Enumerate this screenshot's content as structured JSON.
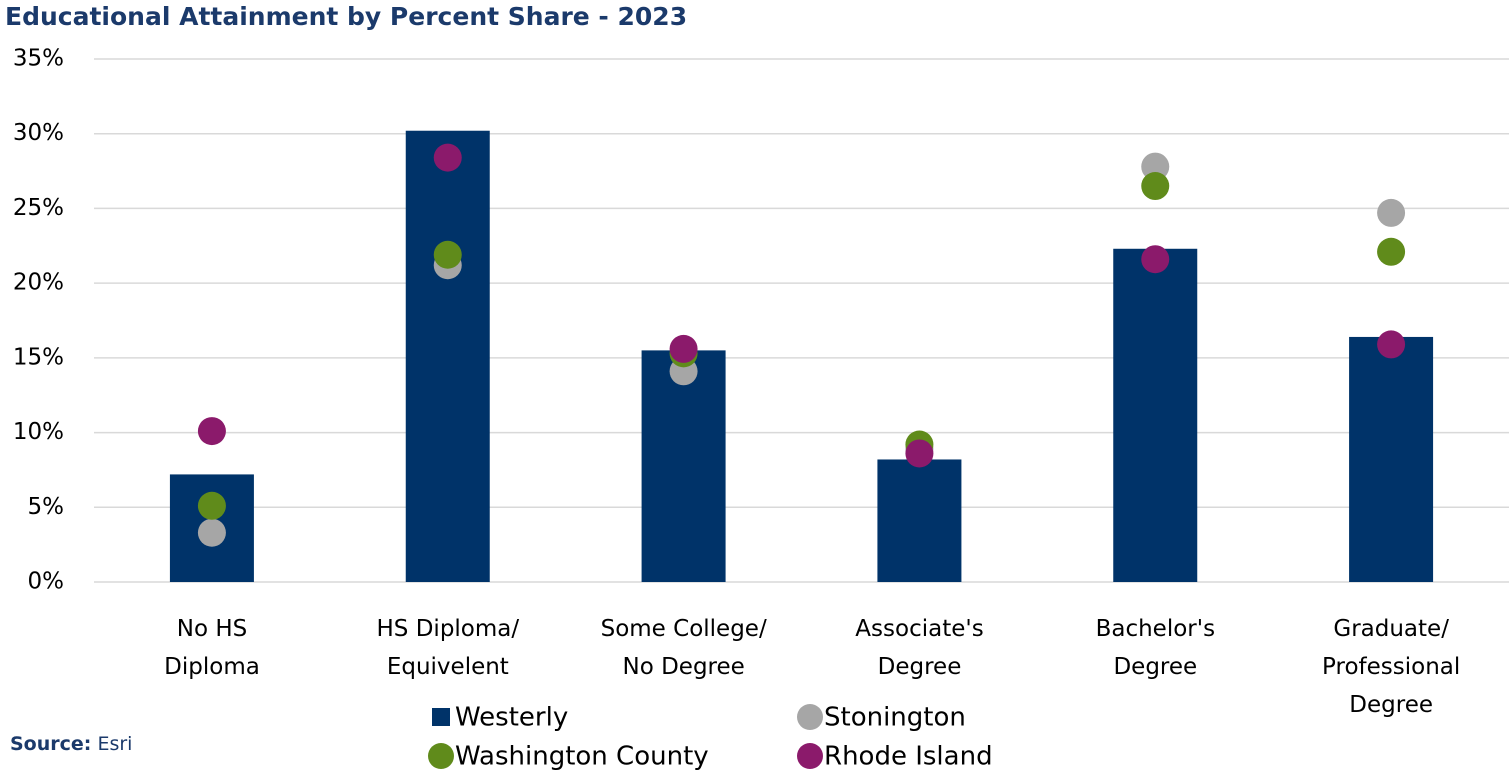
{
  "chart_data": {
    "type": "bar",
    "title": "Educational Attainment by Percent Share - 2023",
    "categories": [
      "No HS\nDiploma",
      "HS Diploma/\nEquivelent",
      "Some College/\nNo Degree",
      "Associate's\nDegree",
      "Bachelor's\nDegree",
      "Graduate/\nProfessional\nDegree"
    ],
    "series": [
      {
        "name": "Westerly",
        "type": "bar",
        "color": "#003369",
        "values": [
          7.2,
          30.2,
          15.5,
          8.2,
          22.3,
          16.4
        ]
      },
      {
        "name": "Stonington",
        "type": "scatter",
        "color": "#a6a6a6",
        "values": [
          3.3,
          21.2,
          14.1,
          8.9,
          27.8,
          24.7
        ]
      },
      {
        "name": "Washington County",
        "type": "scatter",
        "color": "#608b1b",
        "values": [
          5.1,
          21.9,
          15.3,
          9.2,
          26.5,
          22.1
        ]
      },
      {
        "name": "Rhode Island",
        "type": "scatter",
        "color": "#8b1a6b",
        "values": [
          10.1,
          28.4,
          15.6,
          8.6,
          21.6,
          15.9
        ]
      }
    ],
    "ylim": [
      0,
      35
    ],
    "yticks": [
      {
        "value": 0,
        "label": "0%"
      },
      {
        "value": 5,
        "label": "5%"
      },
      {
        "value": 10,
        "label": "10%"
      },
      {
        "value": 15,
        "label": "15%"
      },
      {
        "value": 20,
        "label": "20%"
      },
      {
        "value": 25,
        "label": "25%"
      },
      {
        "value": 30,
        "label": "30%"
      },
      {
        "value": 35,
        "label": "35%"
      }
    ],
    "grid": true,
    "legend": "bottom",
    "source_label": "Source:",
    "source": "Esri"
  }
}
